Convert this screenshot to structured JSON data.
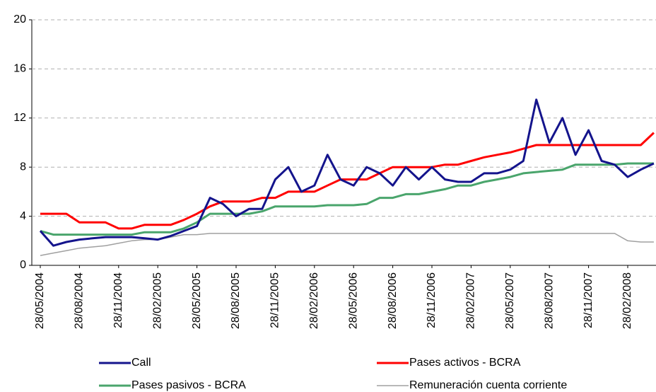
{
  "chart_data": {
    "type": "line",
    "categories": [
      "28/05/2004",
      null,
      null,
      "28/08/2004",
      null,
      null,
      "28/11/2004",
      null,
      null,
      "28/02/2005",
      null,
      null,
      "28/05/2005",
      null,
      null,
      "28/08/2005",
      null,
      null,
      "28/11/2005",
      null,
      null,
      "28/02/2006",
      null,
      null,
      "28/05/2006",
      null,
      null,
      "28/08/2006",
      null,
      null,
      "28/11/2006",
      null,
      null,
      "28/02/2007",
      null,
      null,
      "28/05/2007",
      null,
      null,
      "28/08/2007",
      null,
      null,
      "28/11/2007",
      null,
      null,
      "28/02/2008",
      null,
      null
    ],
    "series": [
      {
        "name": "Call",
        "color": "#14148c",
        "values": [
          2.8,
          1.6,
          1.9,
          2.1,
          2.2,
          2.3,
          2.3,
          2.3,
          2.2,
          2.1,
          2.4,
          2.8,
          3.2,
          5.5,
          5.0,
          4.0,
          4.6,
          4.6,
          7.0,
          8.0,
          6.0,
          6.5,
          9.0,
          7.0,
          6.5,
          8.0,
          7.5,
          6.5,
          8.0,
          7.0,
          8.0,
          7.0,
          6.8,
          6.8,
          7.5,
          7.5,
          7.8,
          8.5,
          13.5,
          10.0,
          12.0,
          9.0,
          11.0,
          8.5,
          8.2,
          7.2,
          7.8,
          8.3
        ]
      },
      {
        "name": "Pases activos - BCRA",
        "color": "#ff0000",
        "values": [
          4.2,
          4.2,
          4.2,
          3.5,
          3.5,
          3.5,
          3.0,
          3.0,
          3.3,
          3.3,
          3.3,
          3.7,
          4.2,
          4.8,
          5.2,
          5.2,
          5.2,
          5.5,
          5.5,
          6.0,
          6.0,
          6.0,
          6.5,
          7.0,
          7.0,
          7.0,
          7.5,
          8.0,
          8.0,
          8.0,
          8.0,
          8.2,
          8.2,
          8.5,
          8.8,
          9.0,
          9.2,
          9.5,
          9.8,
          9.8,
          9.8,
          9.8,
          9.8,
          9.8,
          9.8,
          9.8,
          9.8,
          10.8
        ]
      },
      {
        "name": "Pases pasivos - BCRA",
        "color": "#4aa56c",
        "values": [
          2.8,
          2.5,
          2.5,
          2.5,
          2.5,
          2.5,
          2.5,
          2.5,
          2.7,
          2.7,
          2.7,
          3.0,
          3.5,
          4.2,
          4.2,
          4.2,
          4.2,
          4.4,
          4.8,
          4.8,
          4.8,
          4.8,
          4.9,
          4.9,
          4.9,
          5.0,
          5.5,
          5.5,
          5.8,
          5.8,
          6.0,
          6.2,
          6.5,
          6.5,
          6.8,
          7.0,
          7.2,
          7.5,
          7.6,
          7.7,
          7.8,
          8.2,
          8.2,
          8.2,
          8.2,
          8.3,
          8.3,
          8.3
        ]
      },
      {
        "name": "Remuneración cuenta corriente",
        "color": "#a0a0a0",
        "values": [
          0.8,
          1.0,
          1.2,
          1.4,
          1.5,
          1.6,
          1.8,
          2.0,
          2.1,
          2.1,
          2.3,
          2.5,
          2.5,
          2.6,
          2.6,
          2.6,
          2.6,
          2.6,
          2.6,
          2.6,
          2.6,
          2.6,
          2.6,
          2.6,
          2.6,
          2.6,
          2.6,
          2.6,
          2.6,
          2.6,
          2.6,
          2.6,
          2.6,
          2.6,
          2.6,
          2.6,
          2.6,
          2.6,
          2.6,
          2.6,
          2.6,
          2.6,
          2.6,
          2.6,
          2.6,
          2.0,
          1.9,
          1.9
        ]
      }
    ],
    "ylim": [
      0,
      20
    ],
    "yticks": [
      0,
      4,
      8,
      12,
      16,
      20
    ],
    "grid": true,
    "legend": "bottom"
  }
}
